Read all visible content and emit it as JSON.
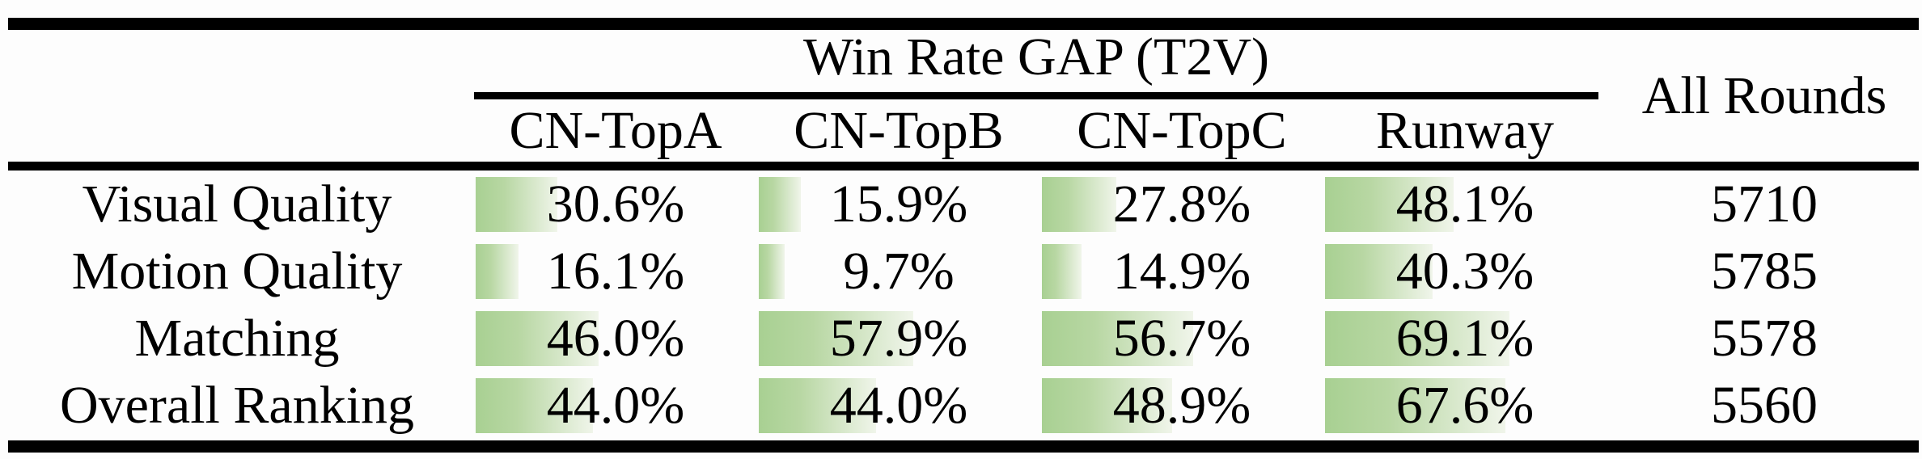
{
  "page": {
    "background": "#fdfdfd",
    "text_color": "#000000",
    "rule_color": "#000000"
  },
  "colors": {
    "bar_gradient_start": "#a8d092",
    "bar_gradient_mid": "#b8d7a3",
    "bar_gradient_end": "#f0f5ea"
  },
  "table": {
    "group_header": "Win Rate GAP (T2V)",
    "all_rounds_header": "All Rounds",
    "columns": [
      "CN-TopA",
      "CN-TopB",
      "CN-TopC",
      "Runway"
    ],
    "rows": [
      {
        "label": "Visual Quality",
        "cells": [
          {
            "value": 30.6,
            "display": "30.6%"
          },
          {
            "value": 15.9,
            "display": "15.9%"
          },
          {
            "value": 27.8,
            "display": "27.8%"
          },
          {
            "value": 48.1,
            "display": "48.1%"
          }
        ],
        "all_rounds": "5710"
      },
      {
        "label": "Motion Quality",
        "cells": [
          {
            "value": 16.1,
            "display": "16.1%"
          },
          {
            "value": 9.7,
            "display": "9.7%"
          },
          {
            "value": 14.9,
            "display": "14.9%"
          },
          {
            "value": 40.3,
            "display": "40.3%"
          }
        ],
        "all_rounds": "5785"
      },
      {
        "label": "Matching",
        "cells": [
          {
            "value": 46.0,
            "display": "46.0%"
          },
          {
            "value": 57.9,
            "display": "57.9%"
          },
          {
            "value": 56.7,
            "display": "56.7%"
          },
          {
            "value": 69.1,
            "display": "69.1%"
          }
        ],
        "all_rounds": "5578"
      },
      {
        "label": "Overall Ranking",
        "cells": [
          {
            "value": 44.0,
            "display": "44.0%"
          },
          {
            "value": 44.0,
            "display": "44.0%"
          },
          {
            "value": 48.9,
            "display": "48.9%"
          },
          {
            "value": 67.6,
            "display": "67.6%"
          }
        ],
        "all_rounds": "5560"
      }
    ]
  },
  "chart_data": {
    "type": "table",
    "title": "Win Rate GAP (T2V)",
    "columns": [
      "CN-TopA",
      "CN-TopB",
      "CN-TopC",
      "Runway",
      "All Rounds"
    ],
    "row_labels": [
      "Visual Quality",
      "Motion Quality",
      "Matching",
      "Overall Ranking"
    ],
    "win_rate_gap_percent": {
      "Visual Quality": [
        30.6,
        15.9,
        27.8,
        48.1
      ],
      "Motion Quality": [
        16.1,
        9.7,
        14.9,
        40.3
      ],
      "Matching": [
        46.0,
        57.9,
        56.7,
        69.1
      ],
      "Overall Ranking": [
        44.0,
        44.0,
        48.9,
        67.6
      ]
    },
    "all_rounds": [
      5710,
      5785,
      5578,
      5560
    ],
    "bar_style": "left-anchored horizontal data bars, green-to-white gradient, width proportional to percent (100% = 330px)"
  }
}
